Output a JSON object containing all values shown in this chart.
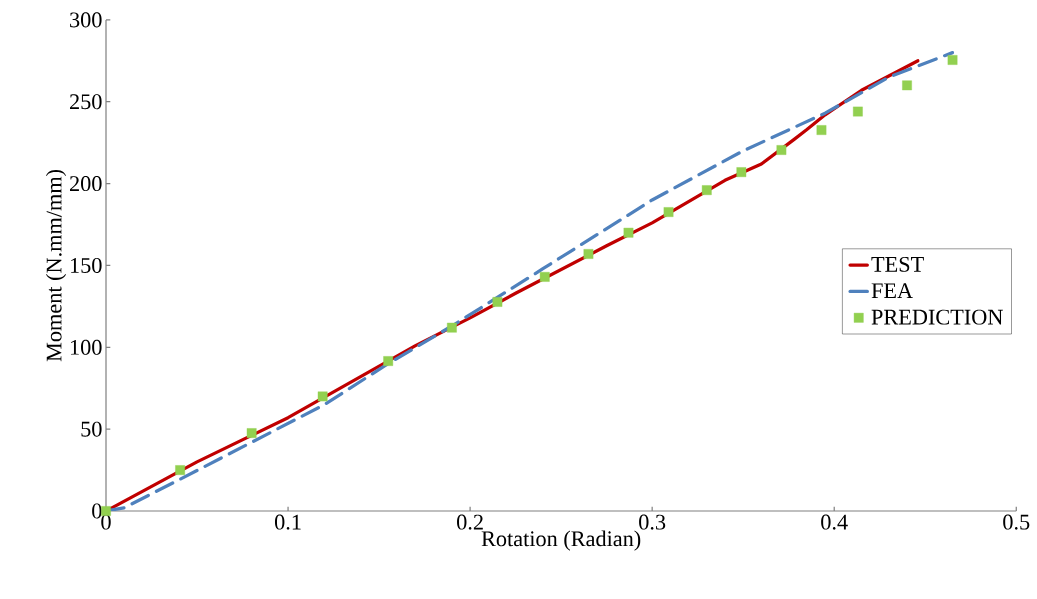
{
  "chart_data": {
    "type": "line",
    "xlabel": "Rotation (Radian)",
    "ylabel": "Moment (N.mm/mm)",
    "xlim": [
      0,
      0.5
    ],
    "xticks": [
      0,
      0.1,
      0.2,
      0.3,
      0.4,
      0.5
    ],
    "ylim": [
      0,
      300
    ],
    "yticks": [
      0,
      50,
      100,
      150,
      200,
      250,
      300
    ],
    "grid": false,
    "legend": "right",
    "series": [
      {
        "name": "TEST",
        "type": "line",
        "color": "#c00000",
        "line_style": "solid",
        "x": [
          0,
          0.05,
          0.1,
          0.17,
          0.2,
          0.225,
          0.275,
          0.3,
          0.34,
          0.36,
          0.378,
          0.385,
          0.395,
          0.415,
          0.446
        ],
        "values": [
          0,
          30,
          57,
          101,
          118,
          133,
          162,
          176,
          202,
          212,
          227,
          233,
          242,
          257,
          275
        ]
      },
      {
        "name": "FEA",
        "type": "line",
        "color": "#4f81bd",
        "line_style": "dashed",
        "x": [
          0,
          0.01,
          0.04,
          0.08,
          0.12,
          0.155,
          0.19,
          0.24,
          0.3,
          0.35,
          0.395,
          0.43,
          0.465
        ],
        "values": [
          0,
          2,
          19,
          42,
          65,
          90,
          113,
          148,
          190,
          220,
          243,
          265,
          280
        ]
      },
      {
        "name": "PREDICTION",
        "type": "scatter",
        "color": "#92d050",
        "marker": "square",
        "x": [
          0,
          0.0407,
          0.08,
          0.119,
          0.155,
          0.19,
          0.215,
          0.241,
          0.265,
          0.287,
          0.309,
          0.33,
          0.349,
          0.371,
          0.393,
          0.413,
          0.44,
          0.465
        ],
        "values": [
          0,
          25,
          47.6,
          70,
          91.6,
          112,
          127.7,
          143,
          157,
          170,
          182.6,
          196,
          207,
          220.5,
          232.7,
          244,
          260,
          275.5
        ]
      }
    ]
  }
}
